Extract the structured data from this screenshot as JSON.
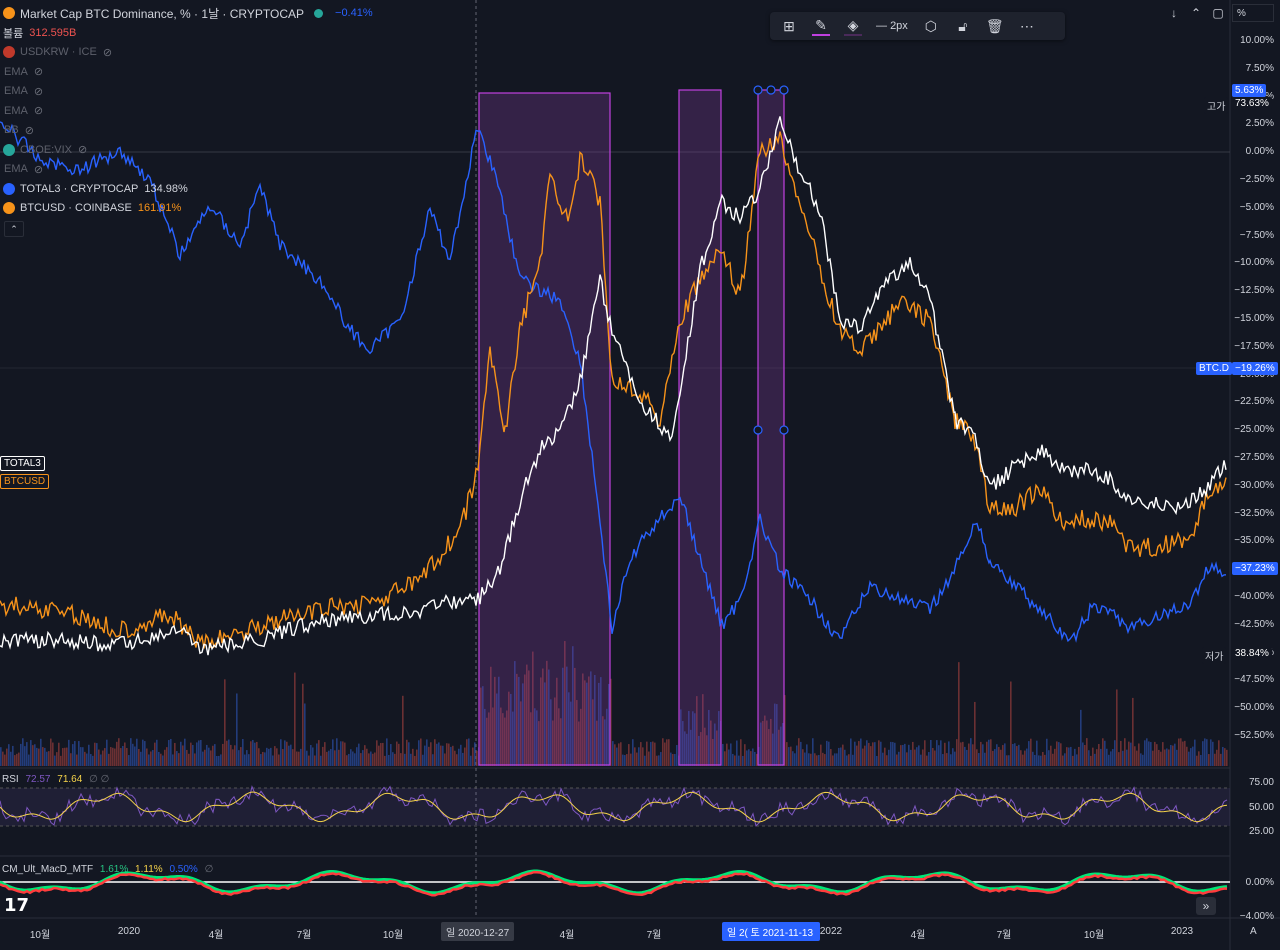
{
  "header": {
    "title": "Market Cap BTC Dominance, % · 1날 · CRYPTOCAP",
    "change": "−0.41%",
    "volume_label": "볼륨",
    "volume_value": "312.595B"
  },
  "legend": [
    {
      "name": "USDKRW · ICE",
      "value": "",
      "icon_color": "#c0392b"
    },
    {
      "name": "EMA",
      "value": "",
      "icon_color": ""
    },
    {
      "name": "EMA",
      "value": "",
      "icon_color": ""
    },
    {
      "name": "EMA",
      "value": "",
      "icon_color": ""
    },
    {
      "name": "BB",
      "value": "",
      "icon_color": ""
    },
    {
      "name": "CBOE:VIX",
      "value": "",
      "icon_color": "#26a69a"
    },
    {
      "name": "EMA",
      "value": "",
      "icon_color": ""
    },
    {
      "name": "TOTAL3 · CRYPTOCAP",
      "value": "134.98%",
      "icon_color": "#2962ff"
    },
    {
      "name": "BTCUSD · COINBASE",
      "value": "161.91%",
      "icon_color": "#f7931a"
    }
  ],
  "toolbar": {
    "width_label": "2px"
  },
  "right_axis": {
    "ticks": [
      "10.00%",
      "7.50%",
      "5.00%",
      "2.50%",
      "0.00%",
      "−2.50%",
      "−5.00%",
      "−7.50%",
      "−10.00%",
      "−12.50%",
      "−15.00%",
      "−17.50%",
      "−20.00%",
      "−22.50%",
      "−25.00%",
      "−27.50%",
      "−30.00%",
      "−32.50%",
      "−35.00%",
      "−37.50%",
      "−40.00%",
      "−42.50%",
      "−45.00%",
      "−47.50%",
      "−50.00%",
      "−52.50%"
    ],
    "tag_high_value": "5.63%",
    "high_label": "고가",
    "high_value": "73.63%",
    "btcd_label": "BTC.D",
    "btcd_value": "−19.26%",
    "current_value": "−37.23%",
    "low_label": "저가",
    "low_value": "38.84%",
    "percent_toggle": "%"
  },
  "left_tags": {
    "total3": "TOTAL3",
    "btcusd": "BTCUSD"
  },
  "rsi": {
    "name": "RSI",
    "v1": "72.57",
    "v2": "71.64",
    "ticks": [
      "75.00",
      "50.00",
      "25.00"
    ]
  },
  "macd": {
    "name": "CM_Ult_MacD_MTF",
    "v1": "1.61%",
    "v2": "1.11%",
    "v3": "0.50%",
    "ticks": [
      "0.00%",
      "−4.00%"
    ]
  },
  "x_axis": {
    "labels": [
      "10월",
      "2020",
      "4월",
      "7월",
      "10월",
      "4월",
      "7월",
      "2022",
      "4월",
      "7월",
      "10월",
      "2023"
    ],
    "pill1": "일 2020-12-27",
    "pill2": "일 2( 토 2021-11-13"
  },
  "colors": {
    "btcd": "#2962ff",
    "total3": "#ffffff",
    "btcusd": "#f7931a",
    "rect_fill": "rgba(130,60,160,0.30)",
    "rect_stroke": "#c040e0",
    "rsi": "#7e57c2",
    "rsi_ma": "#f5d34a",
    "change": "#2962ff"
  }
}
